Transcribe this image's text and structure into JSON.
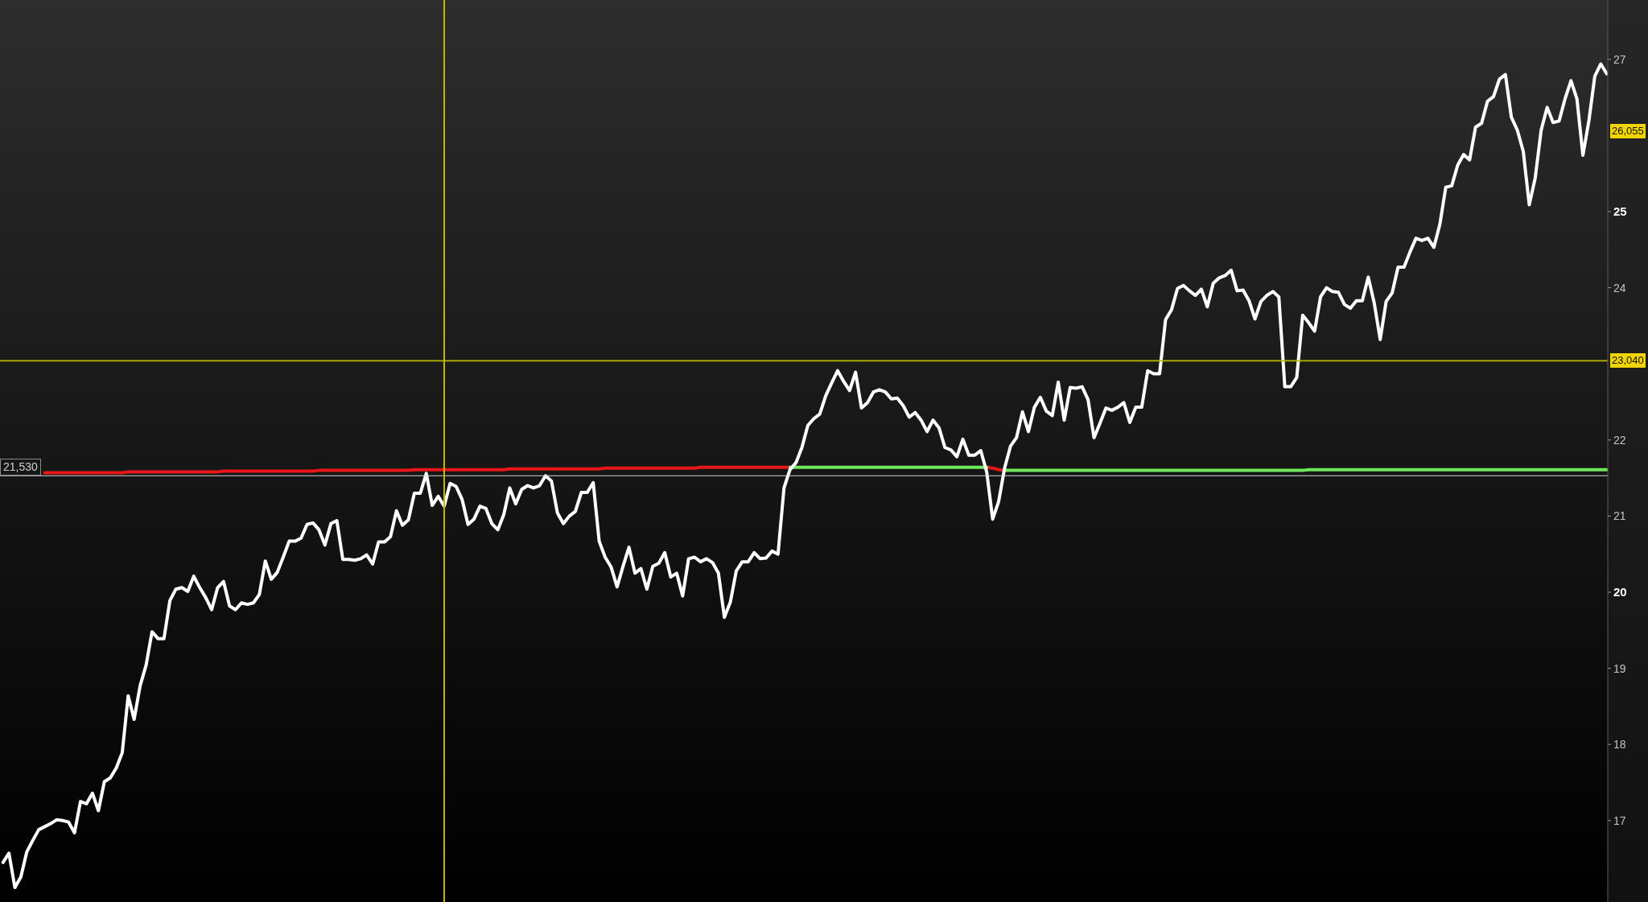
{
  "chart_data": {
    "type": "line",
    "categories": [
      null,
      null,
      null,
      null,
      null,
      null,
      null,
      null,
      null,
      null,
      null,
      null,
      null,
      null,
      null,
      null,
      null,
      null,
      null,
      null,
      null,
      null,
      null,
      null,
      null,
      null,
      null,
      null,
      null,
      null,
      null,
      null,
      null,
      null,
      null,
      null,
      null,
      null,
      null,
      null,
      null,
      null,
      null,
      null,
      null,
      null,
      null,
      null,
      null,
      null,
      null,
      null,
      null,
      null,
      null,
      null,
      null,
      null,
      null,
      null,
      null,
      null,
      null,
      null,
      null,
      null,
      null,
      null,
      null,
      null,
      null,
      null,
      null,
      null,
      null,
      null,
      null,
      null,
      null,
      null,
      null,
      null,
      null,
      null,
      null,
      null,
      null,
      null,
      null,
      null,
      null,
      null,
      null,
      null,
      null,
      null,
      null,
      null,
      null,
      null,
      null,
      null,
      null,
      null,
      null,
      null,
      null,
      null,
      null,
      null,
      null,
      null,
      null,
      null,
      null,
      null,
      null,
      null,
      null,
      null,
      null,
      null,
      null,
      null,
      null,
      null,
      null,
      null,
      null,
      null,
      null,
      null,
      null,
      null,
      null,
      null,
      null,
      null,
      null,
      null,
      null,
      null,
      null,
      null,
      null,
      null,
      null,
      null,
      null,
      null,
      null,
      null,
      null,
      null,
      null,
      null,
      null,
      null,
      null,
      null,
      null,
      null,
      null,
      null,
      null,
      null,
      null,
      null,
      null,
      null,
      null,
      null,
      null,
      null,
      null,
      null,
      null,
      null,
      null,
      null,
      null,
      null,
      null,
      null,
      null,
      null,
      null,
      null,
      null,
      null,
      null,
      null,
      null,
      null,
      null,
      null,
      null,
      null,
      null,
      null,
      null,
      null,
      null,
      null,
      null,
      null,
      null,
      null,
      null,
      null,
      null,
      null,
      null,
      null,
      null,
      null,
      null,
      null,
      null,
      null,
      null,
      null,
      null,
      null,
      null,
      null,
      null,
      null,
      null,
      null,
      null,
      null,
      null,
      null,
      null,
      null,
      null,
      null,
      null,
      null,
      null,
      null,
      null,
      null,
      null,
      null,
      null,
      null,
      null,
      null,
      null,
      null,
      null,
      null,
      null,
      null,
      null,
      null,
      null,
      null,
      null,
      null,
      null,
      null,
      null,
      null,
      null,
      null,
      null,
      null
    ],
    "series": [
      {
        "color": "#e8161a",
        "values": [
          null,
          null,
          null,
          null,
          null,
          null,
          null,
          21.57,
          21.57,
          21.57,
          21.57,
          21.57,
          21.57,
          21.57,
          21.57,
          21.57,
          21.57,
          21.57,
          21.57,
          21.57,
          21.57,
          21.58,
          21.58,
          21.58,
          21.58,
          21.58,
          21.58,
          21.58,
          21.58,
          21.58,
          21.58,
          21.58,
          21.58,
          21.58,
          21.58,
          21.58,
          21.58,
          21.59,
          21.59,
          21.59,
          21.59,
          21.59,
          21.59,
          21.59,
          21.59,
          21.59,
          21.59,
          21.59,
          21.59,
          21.59,
          21.59,
          21.59,
          21.59,
          21.6,
          21.6,
          21.6,
          21.6,
          21.6,
          21.6,
          21.6,
          21.6,
          21.6,
          21.6,
          21.6,
          21.6,
          21.6,
          21.6,
          21.6,
          21.6,
          21.61,
          21.61,
          21.61,
          21.61,
          21.61,
          21.61,
          21.61,
          21.61,
          21.61,
          21.61,
          21.61,
          21.61,
          21.61,
          21.61,
          21.61,
          21.61,
          21.62,
          21.62,
          21.62,
          21.62,
          21.62,
          21.62,
          21.62,
          21.62,
          21.62,
          21.62,
          21.62,
          21.62,
          21.62,
          21.62,
          21.62,
          21.62,
          21.63,
          21.63,
          21.63,
          21.63,
          21.63,
          21.63,
          21.63,
          21.63,
          21.63,
          21.63,
          21.63,
          21.63,
          21.63,
          21.63,
          21.63,
          21.63,
          21.64,
          21.64,
          21.64,
          21.64,
          21.64,
          21.64,
          21.64,
          21.64,
          21.64,
          21.64,
          21.64,
          21.64,
          21.64,
          21.64,
          21.64,
          21.64,
          null,
          null,
          null,
          null,
          null,
          null,
          null,
          null,
          null,
          null,
          null,
          null,
          null,
          null,
          null,
          null,
          null,
          null,
          null,
          null,
          null,
          null,
          null,
          null,
          null,
          null,
          null,
          null,
          null,
          null,
          null,
          null,
          21.64,
          21.63,
          21.61,
          21.6,
          null,
          null,
          null,
          null,
          null,
          null,
          null,
          null,
          null,
          null,
          null,
          null,
          null,
          null,
          null,
          null,
          null,
          null,
          null,
          null,
          null,
          null,
          null,
          null,
          null,
          null,
          null,
          null,
          null,
          null,
          null,
          null,
          null,
          null,
          null,
          null,
          null,
          null,
          null,
          null,
          null,
          null,
          null,
          null,
          null,
          null,
          null,
          null,
          null,
          null,
          null,
          null,
          null,
          null,
          null,
          null,
          null,
          null,
          null,
          null,
          null,
          null,
          null,
          null,
          null,
          null,
          null,
          null,
          null,
          null,
          null,
          null,
          null,
          null,
          null,
          null,
          null,
          null,
          null,
          null,
          null,
          null,
          null,
          null,
          null,
          null,
          null,
          null,
          null,
          null,
          null,
          null,
          null,
          null,
          null,
          null,
          null,
          null,
          null,
          null,
          null
        ]
      },
      {
        "color": "#6fe85c",
        "values": [
          null,
          null,
          null,
          null,
          null,
          null,
          null,
          null,
          null,
          null,
          null,
          null,
          null,
          null,
          null,
          null,
          null,
          null,
          null,
          null,
          null,
          null,
          null,
          null,
          null,
          null,
          null,
          null,
          null,
          null,
          null,
          null,
          null,
          null,
          null,
          null,
          null,
          null,
          null,
          null,
          null,
          null,
          null,
          null,
          null,
          null,
          null,
          null,
          null,
          null,
          null,
          null,
          null,
          null,
          null,
          null,
          null,
          null,
          null,
          null,
          null,
          null,
          null,
          null,
          null,
          null,
          null,
          null,
          null,
          null,
          null,
          null,
          null,
          null,
          null,
          null,
          null,
          null,
          null,
          null,
          null,
          null,
          null,
          null,
          null,
          null,
          null,
          null,
          null,
          null,
          null,
          null,
          null,
          null,
          null,
          null,
          null,
          null,
          null,
          null,
          null,
          null,
          null,
          null,
          null,
          null,
          null,
          null,
          null,
          null,
          null,
          null,
          null,
          null,
          null,
          null,
          null,
          null,
          null,
          null,
          null,
          null,
          null,
          null,
          null,
          null,
          null,
          null,
          null,
          null,
          null,
          null,
          21.64,
          21.64,
          21.64,
          21.64,
          21.64,
          21.64,
          21.64,
          21.64,
          21.64,
          21.64,
          21.64,
          21.64,
          21.64,
          21.64,
          21.64,
          21.64,
          21.64,
          21.64,
          21.64,
          21.64,
          21.64,
          21.64,
          21.64,
          21.64,
          21.64,
          21.64,
          21.64,
          21.64,
          21.64,
          21.64,
          21.64,
          21.64,
          21.64,
          21.64,
          null,
          null,
          21.6,
          21.6,
          21.6,
          21.6,
          21.6,
          21.6,
          21.6,
          21.6,
          21.6,
          21.6,
          21.6,
          21.6,
          21.6,
          21.6,
          21.6,
          21.6,
          21.6,
          21.6,
          21.6,
          21.6,
          21.6,
          21.6,
          21.6,
          21.6,
          21.6,
          21.6,
          21.6,
          21.6,
          21.6,
          21.6,
          21.6,
          21.6,
          21.6,
          21.6,
          21.6,
          21.6,
          21.6,
          21.6,
          21.6,
          21.6,
          21.6,
          21.6,
          21.6,
          21.6,
          21.6,
          21.6,
          21.6,
          21.6,
          21.6,
          21.6,
          21.6,
          21.61,
          21.61,
          21.61,
          21.61,
          21.61,
          21.61,
          21.61,
          21.61,
          21.61,
          21.61,
          21.61,
          21.61,
          21.61,
          21.61,
          21.61,
          21.61,
          21.61,
          21.61,
          21.61,
          21.61,
          21.61,
          21.61,
          21.61,
          21.61,
          21.61,
          21.61,
          21.61,
          21.61,
          21.61,
          21.61,
          21.61,
          21.61,
          21.61,
          21.61,
          21.61,
          21.61,
          21.61,
          21.61,
          21.61,
          21.61,
          21.61,
          21.61,
          21.61,
          21.61,
          21.61,
          21.61,
          21.61,
          21.61,
          21.61,
          21.61,
          21.61
        ]
      },
      {
        "color": "#ffffff",
        "values": [
          16.45,
          16.57,
          16.12,
          16.26,
          16.59,
          16.74,
          16.88,
          16.92,
          16.96,
          17.01,
          17.0,
          16.98,
          16.84,
          17.25,
          17.22,
          17.36,
          17.13,
          17.51,
          17.56,
          17.69,
          17.89,
          18.64,
          18.33,
          18.77,
          19.04,
          19.48,
          19.39,
          19.39,
          19.89,
          20.04,
          20.06,
          20.01,
          20.21,
          20.06,
          19.93,
          19.77,
          20.06,
          20.14,
          19.82,
          19.77,
          19.86,
          19.84,
          19.86,
          19.97,
          20.41,
          20.17,
          20.26,
          20.46,
          20.67,
          20.67,
          20.71,
          20.89,
          20.91,
          20.82,
          20.62,
          20.9,
          20.94,
          20.43,
          20.43,
          20.42,
          20.44,
          20.49,
          20.37,
          20.66,
          20.66,
          20.73,
          21.07,
          20.88,
          20.95,
          21.3,
          21.3,
          21.56,
          21.14,
          21.26,
          21.13,
          21.43,
          21.39,
          21.22,
          20.89,
          20.96,
          21.13,
          21.1,
          20.9,
          20.82,
          21.02,
          21.37,
          21.16,
          21.35,
          21.4,
          21.37,
          21.4,
          21.53,
          21.46,
          21.04,
          20.9,
          21.0,
          21.06,
          21.31,
          21.31,
          21.44,
          20.67,
          20.46,
          20.33,
          20.07,
          20.34,
          20.59,
          20.25,
          20.31,
          20.04,
          20.34,
          20.38,
          20.52,
          20.2,
          20.25,
          19.95,
          20.44,
          20.46,
          20.4,
          20.44,
          20.39,
          20.25,
          19.67,
          19.87,
          20.28,
          20.4,
          20.4,
          20.52,
          20.44,
          20.45,
          20.54,
          20.5,
          21.37,
          21.61,
          21.7,
          21.9,
          22.19,
          22.28,
          22.34,
          22.58,
          22.75,
          22.91,
          22.77,
          22.65,
          22.89,
          22.42,
          22.49,
          22.63,
          22.66,
          22.63,
          22.54,
          22.55,
          22.45,
          22.3,
          22.36,
          22.26,
          22.11,
          22.26,
          22.16,
          21.9,
          21.87,
          21.78,
          22.01,
          21.8,
          21.8,
          21.86,
          21.58,
          20.96,
          21.19,
          21.63,
          21.92,
          22.03,
          22.37,
          22.11,
          22.43,
          22.56,
          22.38,
          22.32,
          22.76,
          22.26,
          22.69,
          22.68,
          22.7,
          22.53,
          22.03,
          22.22,
          22.42,
          22.39,
          22.43,
          22.49,
          22.23,
          22.43,
          22.43,
          22.91,
          22.87,
          22.87,
          23.58,
          23.71,
          23.99,
          24.03,
          23.96,
          23.9,
          23.98,
          23.75,
          24.06,
          24.13,
          24.16,
          24.23,
          23.96,
          23.97,
          23.83,
          23.59,
          23.82,
          23.9,
          23.95,
          23.88,
          22.7,
          22.7,
          22.82,
          23.64,
          23.54,
          23.43,
          23.88,
          24.0,
          23.95,
          23.94,
          23.78,
          23.73,
          23.83,
          23.83,
          24.14,
          23.8,
          23.32,
          23.82,
          23.93,
          24.27,
          24.27,
          24.47,
          24.65,
          24.62,
          24.65,
          24.53,
          24.83,
          25.32,
          25.34,
          25.61,
          25.75,
          25.68,
          26.11,
          26.16,
          26.45,
          26.51,
          26.74,
          26.8,
          26.24,
          26.07,
          25.79,
          25.09,
          25.44,
          26.07,
          26.37,
          26.17,
          26.19,
          26.48,
          26.72,
          26.48,
          25.74,
          26.19,
          26.78,
          26.94,
          26.81
        ]
      }
    ],
    "ylim": [
      15.93,
      27.78
    ],
    "yticks": [
      17,
      18,
      19,
      20,
      21,
      22,
      24,
      25,
      27
    ],
    "tick_labels": "y",
    "ref_lines": [
      {
        "axis": "y",
        "value": 21.53,
        "label": "21,530",
        "color": "#d4d4d4"
      },
      {
        "axis": "y",
        "value": 23.04,
        "color": "#bdb800"
      }
    ],
    "annotations": [
      {
        "text": "26,055",
        "y": 26.055
      },
      {
        "text": "23,040",
        "y": 23.04
      }
    ]
  }
}
